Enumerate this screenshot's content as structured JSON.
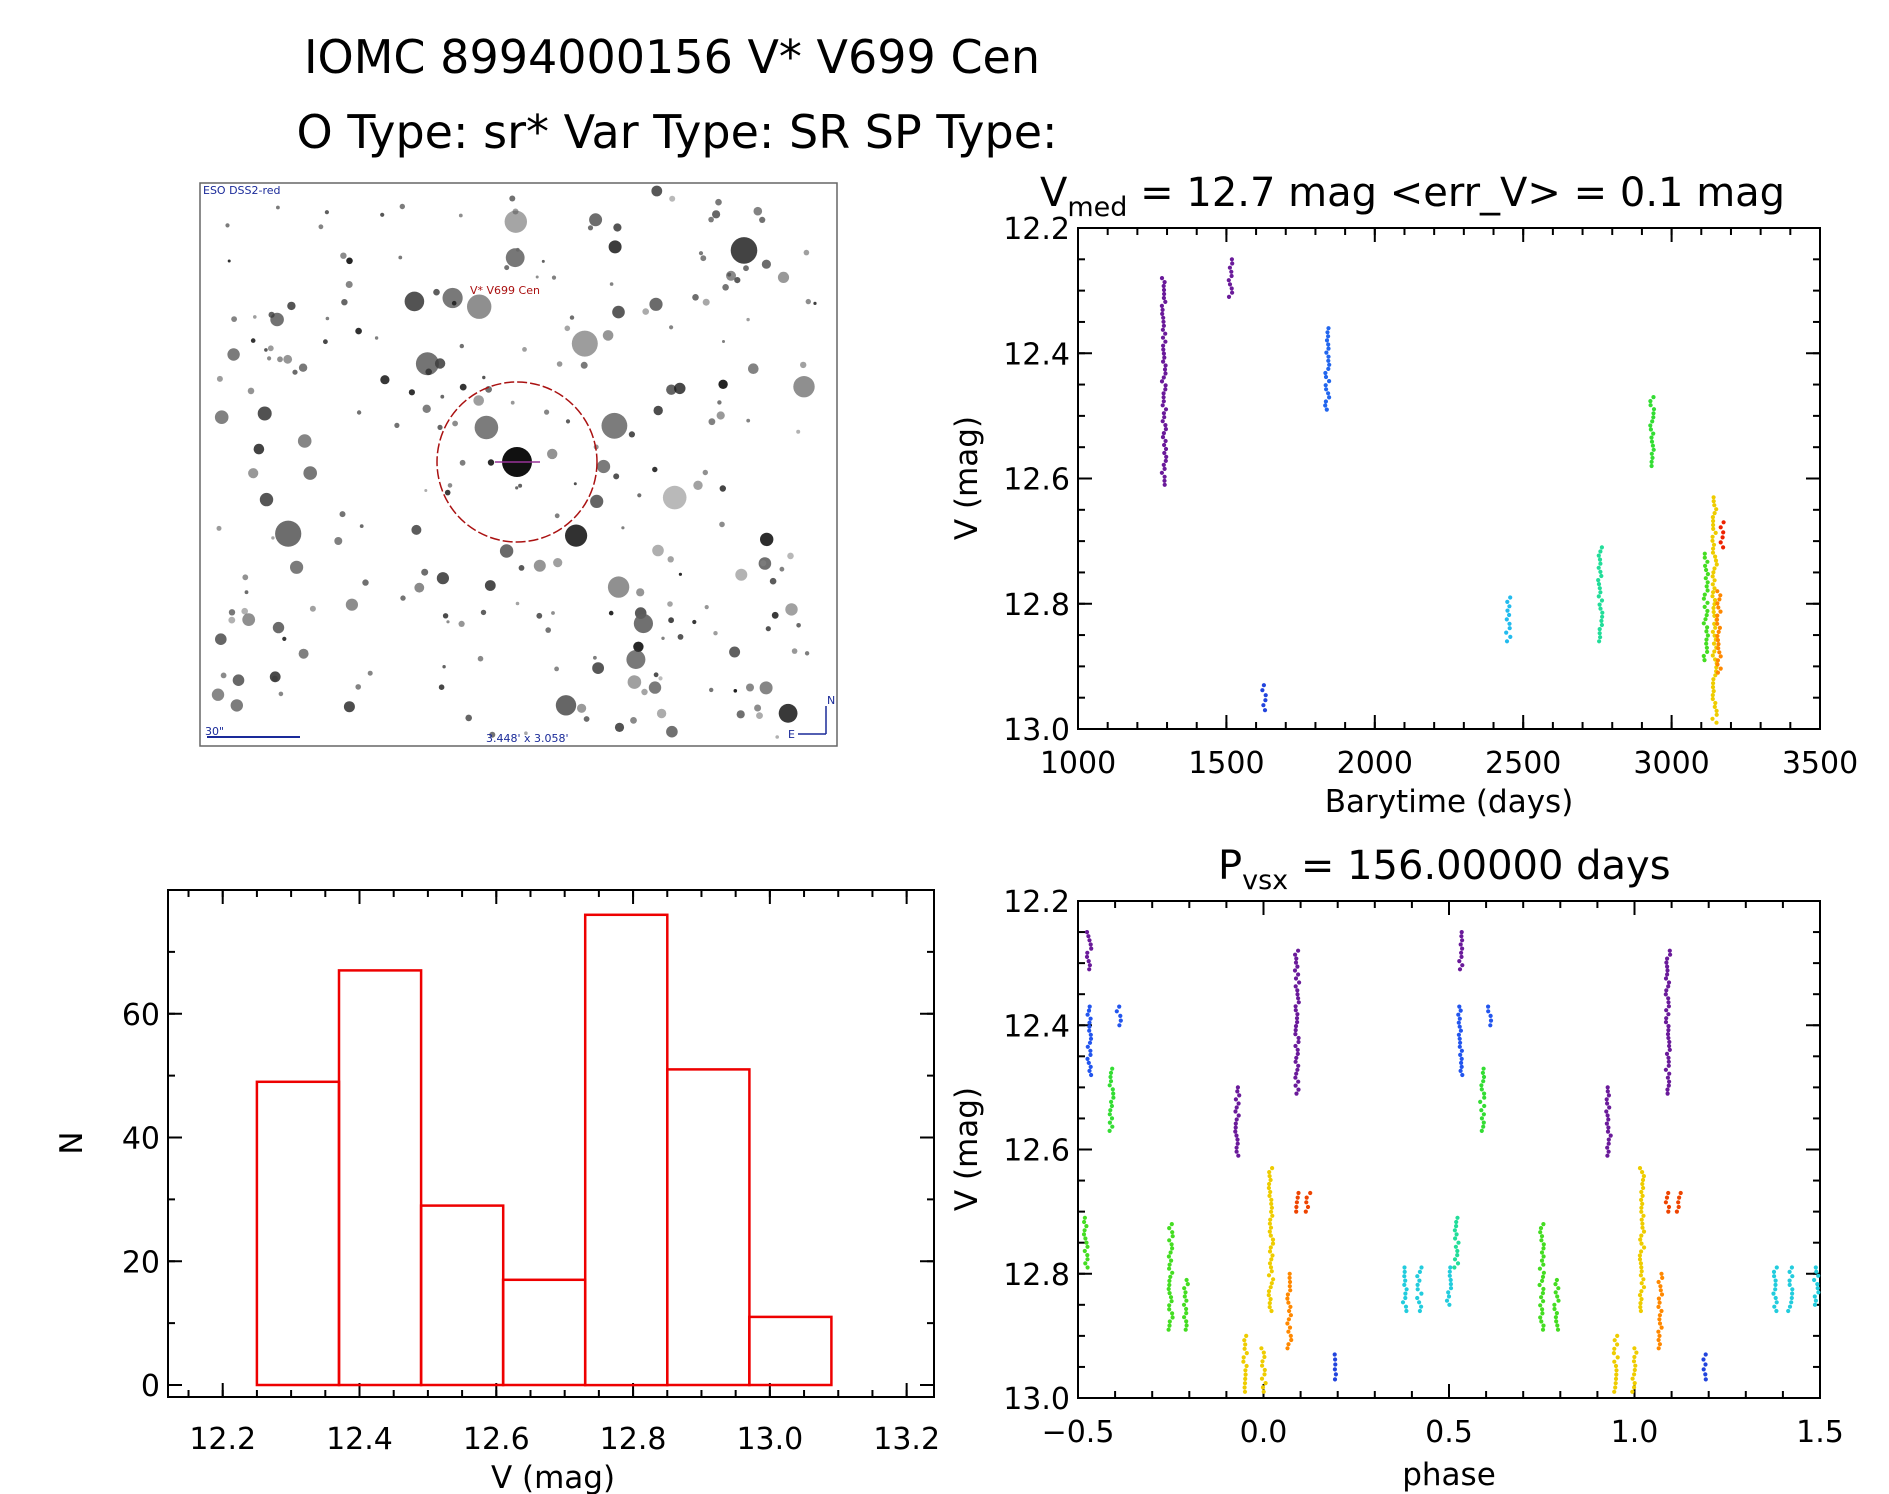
{
  "header": {
    "title_line1": "IOMC 8994000156    V* V699 Cen",
    "title_line2": "O Type: sr*  Var Type: SR  SP Type:"
  },
  "finder": {
    "survey_label": "ESO DSS2-red",
    "object_label": "V* V699 Cen",
    "scale_label": "30\"",
    "fov_label": "3.448' x 3.058'",
    "compass_n": "N",
    "compass_e": "E"
  },
  "lightcurve": {
    "title_prefix": "V",
    "title_sub": "med",
    "title_rest": " = 12.7 mag <err_V> = 0.1 mag",
    "xlabel": "Barytime (days)",
    "ylabel": "V (mag)"
  },
  "phased": {
    "title_prefix": "P",
    "title_sub": "vsx",
    "title_rest": " = 156.00000 days",
    "xlabel": "phase",
    "ylabel": "V (mag)"
  },
  "histogram": {
    "xlabel": "V (mag)",
    "ylabel": "N"
  },
  "chart_data": [
    {
      "type": "scatter",
      "title": "V_med = 12.7 mag <err_V> = 0.1 mag",
      "xlabel": "Barytime (days)",
      "ylabel": "V (mag)",
      "xlim": [
        1000,
        3500
      ],
      "ylim": [
        12.2,
        13.0
      ],
      "y_inverted": true,
      "xticks": [
        1000,
        1500,
        2000,
        2500,
        3000,
        3500
      ],
      "yticks": [
        12.2,
        12.4,
        12.6,
        12.8,
        13.0
      ],
      "groups": [
        {
          "color": "#6a1a9a",
          "x": 1290,
          "y_min": 12.28,
          "y_max": 12.61
        },
        {
          "color": "#6a1a9a",
          "x": 1515,
          "y_min": 12.25,
          "y_max": 12.31
        },
        {
          "color": "#2244dd",
          "x": 1625,
          "y_min": 12.93,
          "y_max": 12.97
        },
        {
          "color": "#2266ee",
          "x": 1840,
          "y_min": 12.36,
          "y_max": 12.49
        },
        {
          "color": "#22bbee",
          "x": 2450,
          "y_min": 12.79,
          "y_max": 12.86
        },
        {
          "color": "#22dd99",
          "x": 2760,
          "y_min": 12.71,
          "y_max": 12.86
        },
        {
          "color": "#33dd33",
          "x": 2935,
          "y_min": 12.47,
          "y_max": 12.58
        },
        {
          "color": "#44dd22",
          "x": 3115,
          "y_min": 12.72,
          "y_max": 12.89
        },
        {
          "color": "#eecc00",
          "x": 3145,
          "y_min": 12.63,
          "y_max": 12.99
        },
        {
          "color": "#ff8800",
          "x": 3160,
          "y_min": 12.78,
          "y_max": 12.91
        },
        {
          "color": "#ee2200",
          "x": 3170,
          "y_min": 12.67,
          "y_max": 12.71
        }
      ]
    },
    {
      "type": "scatter",
      "title": "P_vsx = 156.00000 days",
      "xlabel": "phase",
      "ylabel": "V (mag)",
      "xlim": [
        -0.5,
        1.5
      ],
      "ylim": [
        12.2,
        13.0
      ],
      "y_inverted": true,
      "xticks": [
        -0.5,
        0.0,
        0.5,
        1.0,
        1.5
      ],
      "xtick_labels": [
        "−0.5",
        "0.0",
        "0.5",
        "1.0",
        "1.5"
      ],
      "yticks": [
        12.2,
        12.4,
        12.6,
        12.8,
        13.0
      ],
      "groups": [
        {
          "color": "#6a1a9a",
          "x": -0.47,
          "y_min": 12.25,
          "y_max": 12.31
        },
        {
          "color": "#2255ee",
          "x": -0.47,
          "y_min": 12.37,
          "y_max": 12.48
        },
        {
          "color": "#2255ee",
          "x": -0.39,
          "y_min": 12.37,
          "y_max": 12.4
        },
        {
          "color": "#33dd33",
          "x": -0.41,
          "y_min": 12.47,
          "y_max": 12.57
        },
        {
          "color": "#44dd22",
          "x": -0.48,
          "y_min": 12.71,
          "y_max": 12.79
        },
        {
          "color": "#44dd22",
          "x": -0.25,
          "y_min": 12.72,
          "y_max": 12.89
        },
        {
          "color": "#44dd22",
          "x": -0.21,
          "y_min": 12.81,
          "y_max": 12.89
        },
        {
          "color": "#6a1a9a",
          "x": -0.07,
          "y_min": 12.5,
          "y_max": 12.61
        },
        {
          "color": "#eecc00",
          "x": -0.05,
          "y_min": 12.9,
          "y_max": 12.99
        },
        {
          "color": "#eecc00",
          "x": 0.0,
          "y_min": 12.92,
          "y_max": 12.99
        },
        {
          "color": "#eecc00",
          "x": 0.02,
          "y_min": 12.63,
          "y_max": 12.86
        },
        {
          "color": "#ff8800",
          "x": 0.07,
          "y_min": 12.8,
          "y_max": 12.92
        },
        {
          "color": "#ee4400",
          "x": 0.09,
          "y_min": 12.67,
          "y_max": 12.7
        },
        {
          "color": "#ee4400",
          "x": 0.12,
          "y_min": 12.67,
          "y_max": 12.7
        },
        {
          "color": "#6a1a9a",
          "x": 0.09,
          "y_min": 12.28,
          "y_max": 12.51
        },
        {
          "color": "#2244dd",
          "x": 0.19,
          "y_min": 12.93,
          "y_max": 12.97
        },
        {
          "color": "#22ccdd",
          "x": 0.38,
          "y_min": 12.79,
          "y_max": 12.86
        },
        {
          "color": "#22ccdd",
          "x": 0.42,
          "y_min": 12.79,
          "y_max": 12.86
        },
        {
          "color": "#22ccdd",
          "x": 0.5,
          "y_min": 12.79,
          "y_max": 12.85
        },
        {
          "color": "#22dd99",
          "x": 0.52,
          "y_min": 12.71,
          "y_max": 12.79
        },
        {
          "color": "#6a1a9a",
          "x": 0.53,
          "y_min": 12.25,
          "y_max": 12.31
        },
        {
          "color": "#2255ee",
          "x": 0.53,
          "y_min": 12.37,
          "y_max": 12.48
        },
        {
          "color": "#2255ee",
          "x": 0.61,
          "y_min": 12.37,
          "y_max": 12.4
        },
        {
          "color": "#33dd33",
          "x": 0.59,
          "y_min": 12.47,
          "y_max": 12.57
        },
        {
          "color": "#44dd22",
          "x": 0.75,
          "y_min": 12.72,
          "y_max": 12.89
        },
        {
          "color": "#44dd22",
          "x": 0.79,
          "y_min": 12.81,
          "y_max": 12.89
        },
        {
          "color": "#6a1a9a",
          "x": 0.93,
          "y_min": 12.5,
          "y_max": 12.61
        },
        {
          "color": "#eecc00",
          "x": 0.95,
          "y_min": 12.9,
          "y_max": 12.99
        },
        {
          "color": "#eecc00",
          "x": 1.0,
          "y_min": 12.92,
          "y_max": 12.99
        },
        {
          "color": "#eecc00",
          "x": 1.02,
          "y_min": 12.63,
          "y_max": 12.86
        },
        {
          "color": "#ff8800",
          "x": 1.07,
          "y_min": 12.8,
          "y_max": 12.92
        },
        {
          "color": "#ee4400",
          "x": 1.09,
          "y_min": 12.67,
          "y_max": 12.7
        },
        {
          "color": "#ee4400",
          "x": 1.12,
          "y_min": 12.67,
          "y_max": 12.7
        },
        {
          "color": "#6a1a9a",
          "x": 1.09,
          "y_min": 12.28,
          "y_max": 12.51
        },
        {
          "color": "#2244dd",
          "x": 1.19,
          "y_min": 12.93,
          "y_max": 12.97
        },
        {
          "color": "#22ccdd",
          "x": 1.38,
          "y_min": 12.79,
          "y_max": 12.86
        },
        {
          "color": "#22ccdd",
          "x": 1.42,
          "y_min": 12.79,
          "y_max": 12.86
        },
        {
          "color": "#22ccdd",
          "x": 1.49,
          "y_min": 12.79,
          "y_max": 12.85
        }
      ]
    },
    {
      "type": "bar",
      "subtype": "histogram",
      "xlabel": "V (mag)",
      "ylabel": "N",
      "xlim": [
        12.12,
        13.24
      ],
      "ylim": [
        0,
        80
      ],
      "xticks": [
        12.2,
        12.4,
        12.6,
        12.8,
        13.0,
        13.2
      ],
      "yticks": [
        0,
        20,
        40,
        60
      ],
      "bar_color": "#ee0000",
      "bins": [
        {
          "start": 12.25,
          "end": 12.37,
          "count": 49
        },
        {
          "start": 12.37,
          "end": 12.49,
          "count": 67
        },
        {
          "start": 12.49,
          "end": 12.61,
          "count": 29
        },
        {
          "start": 12.61,
          "end": 12.73,
          "count": 17
        },
        {
          "start": 12.73,
          "end": 12.85,
          "count": 76
        },
        {
          "start": 12.85,
          "end": 12.97,
          "count": 51
        },
        {
          "start": 12.97,
          "end": 13.09,
          "count": 11
        }
      ]
    }
  ]
}
